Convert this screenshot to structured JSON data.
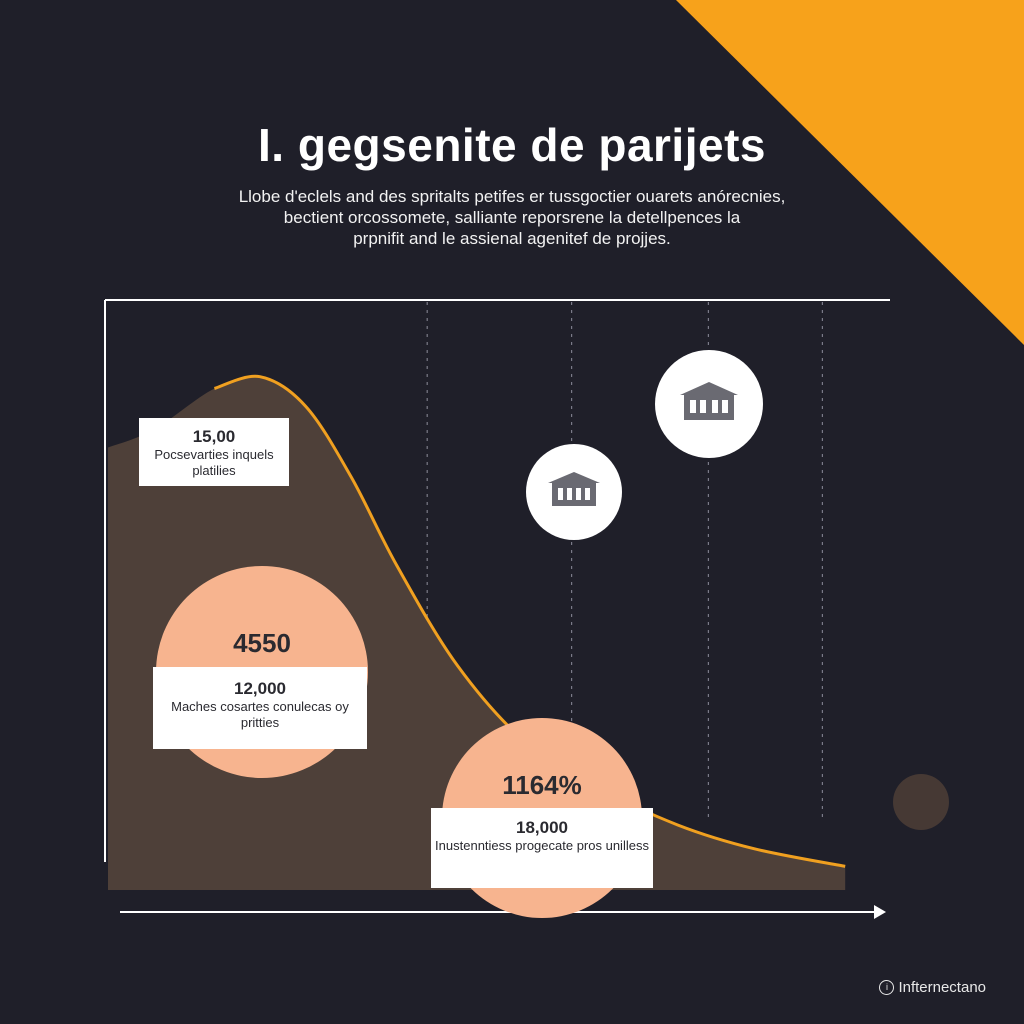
{
  "colors": {
    "background": "#1f1f29",
    "accent": "#f7a21b",
    "area": "#4e4039",
    "curve": "#f0a020",
    "bubble": "#f7b48f",
    "axis": "#ffffff",
    "dot": "#463934"
  },
  "header": {
    "title": "I. gegsenite de parijets",
    "subtitle_lines": [
      "Llobe d'eclels and des spritalts petifes er tussgoctier ouarets anórecnies,",
      "bectient orcossomete, salliante reporsrene la detellpences la",
      "prpnifit and le assienal agenitef de projjes."
    ]
  },
  "chart_data": {
    "type": "area",
    "title": "I. gegsenite de parijets",
    "xlabel": "",
    "ylabel": "",
    "xlim": [
      0,
      100
    ],
    "ylim": [
      0,
      100
    ],
    "grid": "vertical dashed",
    "series": [
      {
        "name": "curve",
        "x": [
          0,
          6,
          14,
          20,
          26,
          32,
          38,
          46,
          55,
          65,
          75,
          85,
          97
        ],
        "y": [
          75,
          78,
          85,
          87,
          82,
          70,
          55,
          38,
          25,
          17,
          11,
          7,
          4
        ]
      }
    ],
    "callouts": [
      {
        "value": "15,00",
        "label": "Pocsevarties inquels platilies"
      },
      {
        "big": "4550",
        "value": "12,000",
        "label": "Maches cosartes conulecas oy pritties"
      },
      {
        "big": "1164%",
        "value": "18,000",
        "label": "Inustenntiess progecate pros unilless"
      }
    ],
    "icons": [
      "building-icon",
      "building-icon"
    ]
  },
  "footer": {
    "brand": "Infternectano",
    "brand_icon": "info-icon"
  }
}
